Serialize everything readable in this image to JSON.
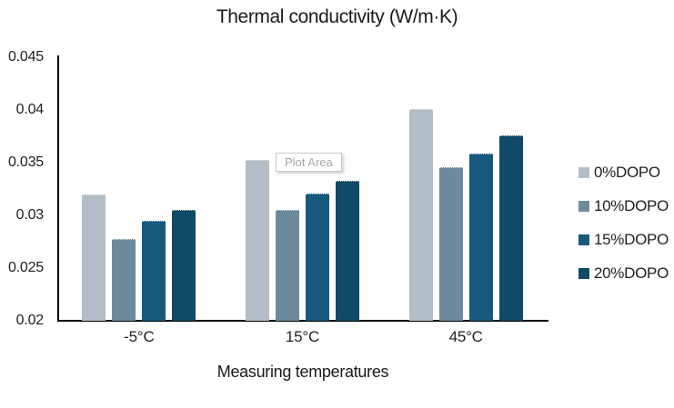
{
  "chart_data": {
    "type": "bar",
    "title": "Thermal conductivity (W/m·K)",
    "xlabel": "Measuring temperatures",
    "ylabel": "",
    "categories": [
      "-5°C",
      "15°C",
      "45°C"
    ],
    "series": [
      {
        "name": "0%DOPO",
        "color": "#b2bdc7",
        "values": [
          0.032,
          0.0353,
          0.0401
        ]
      },
      {
        "name": "10%DOPO",
        "color": "#6d8a9d",
        "values": [
          0.0278,
          0.0305,
          0.0346
        ]
      },
      {
        "name": "15%DOPO",
        "color": "#16597c",
        "values": [
          0.0295,
          0.0321,
          0.0359
        ]
      },
      {
        "name": "20%DOPO",
        "color": "#114a68",
        "values": [
          0.0305,
          0.0333,
          0.0376
        ]
      }
    ],
    "ylim": [
      0.02,
      0.045
    ],
    "yticks": [
      0.02,
      0.025,
      0.03,
      0.035,
      0.04,
      0.045
    ],
    "ytick_labels": [
      "0.02",
      "0.025",
      "0.03",
      "0.035",
      "0.04",
      "0.045"
    ],
    "grid": false,
    "legend_position": "right",
    "axis_color": "#000000"
  },
  "tooltip": {
    "text": "Plot Area"
  }
}
